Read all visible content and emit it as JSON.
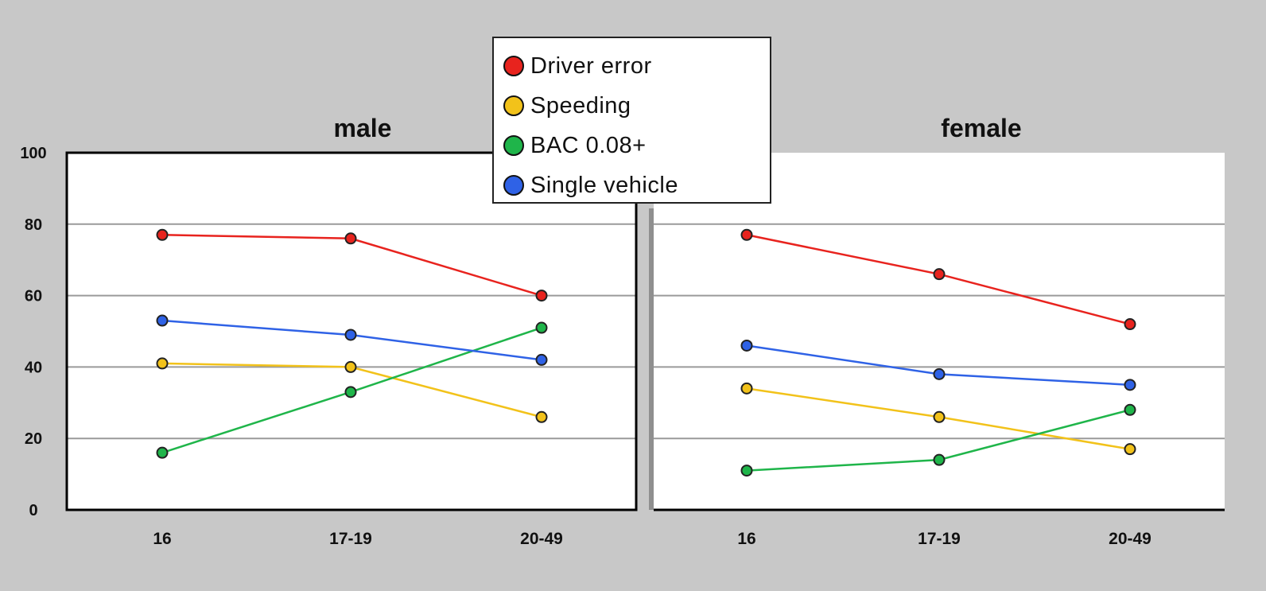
{
  "chart_data": [
    {
      "type": "line",
      "title": "male",
      "categories": [
        "16",
        "17-19",
        "20-49"
      ],
      "ylim": [
        0,
        100
      ],
      "yticks": [
        "0",
        "20",
        "40",
        "60",
        "80",
        "100"
      ],
      "grid": true,
      "series": [
        {
          "name": "Driver error",
          "color": "#e8231e",
          "values": [
            77,
            76,
            60
          ]
        },
        {
          "name": "Speeding",
          "color": "#f2c21a",
          "values": [
            41,
            40,
            26
          ]
        },
        {
          "name": "BAC 0.08+",
          "color": "#1fb54a",
          "values": [
            16,
            33,
            51
          ]
        },
        {
          "name": "Single vehicle",
          "color": "#2f62e6",
          "values": [
            53,
            49,
            42
          ]
        }
      ]
    },
    {
      "type": "line",
      "title": "female",
      "categories": [
        "16",
        "17-19",
        "20-49"
      ],
      "ylim": [
        0,
        100
      ],
      "grid": true,
      "series": [
        {
          "name": "Driver error",
          "color": "#e8231e",
          "values": [
            77,
            66,
            52
          ]
        },
        {
          "name": "Speeding",
          "color": "#f2c21a",
          "values": [
            34,
            26,
            17
          ]
        },
        {
          "name": "BAC 0.08+",
          "color": "#1fb54a",
          "values": [
            11,
            14,
            28
          ]
        },
        {
          "name": "Single vehicle",
          "color": "#2f62e6",
          "values": [
            46,
            38,
            35
          ]
        }
      ]
    }
  ],
  "legend": {
    "placement": "top-center",
    "items": [
      {
        "label": "Driver error",
        "color": "#e8231e"
      },
      {
        "label": "Speeding",
        "color": "#f2c21a"
      },
      {
        "label": "BAC 0.08+",
        "color": "#1fb54a"
      },
      {
        "label": "Single vehicle",
        "color": "#2f62e6"
      }
    ]
  }
}
